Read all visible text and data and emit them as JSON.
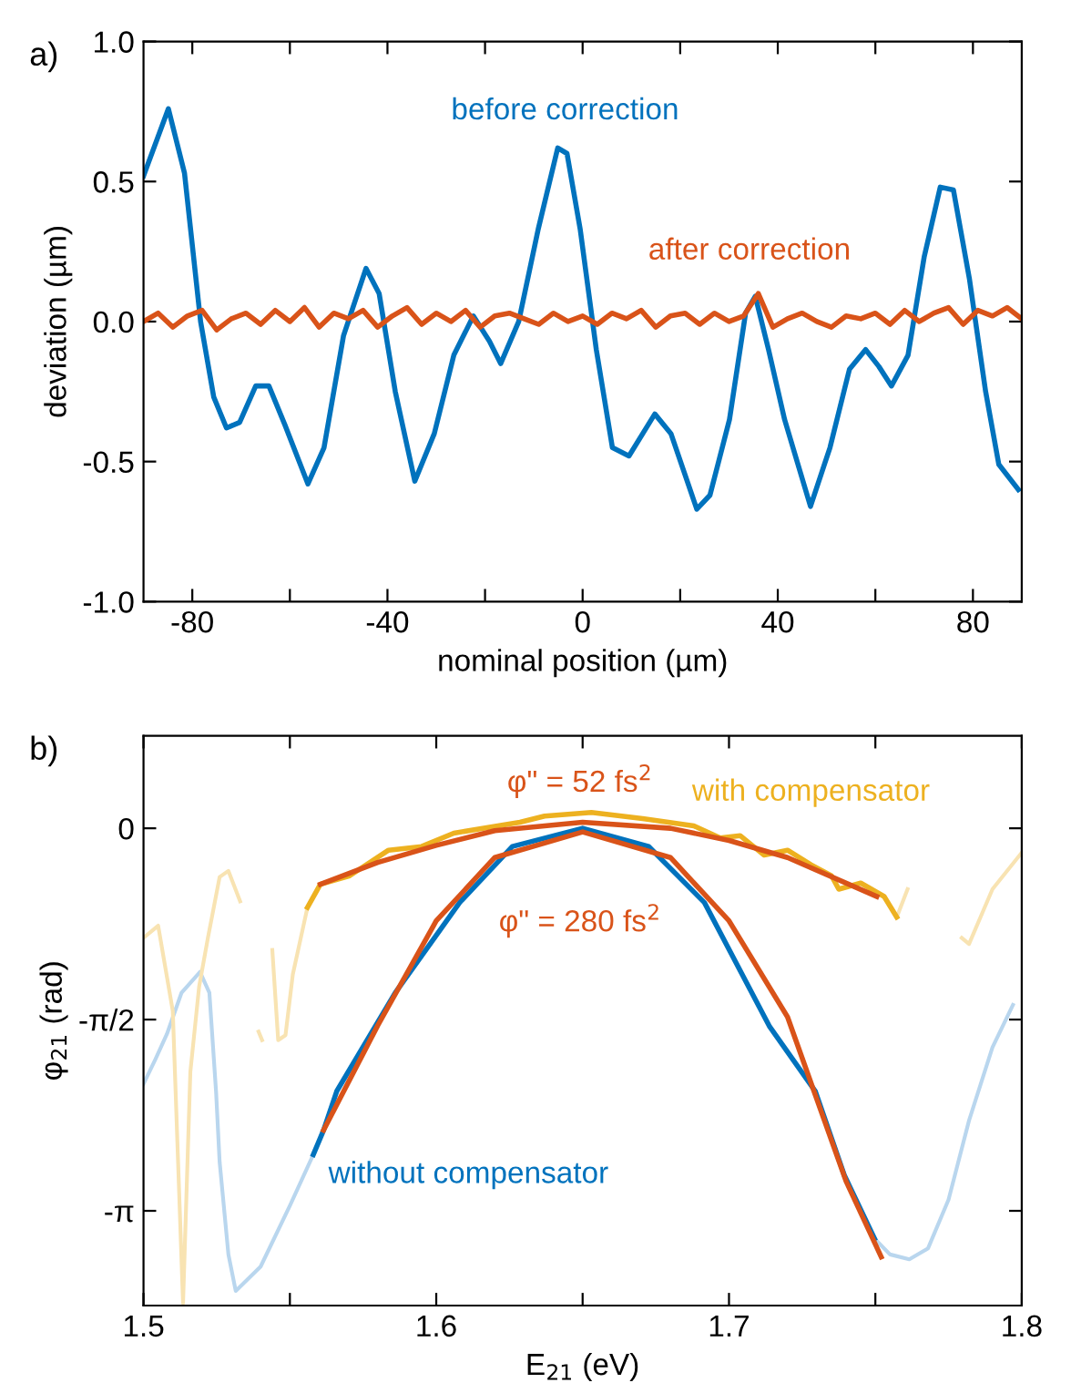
{
  "chart_data": [
    {
      "type": "line",
      "title": "a)",
      "xlabel": "nominal position (µm)",
      "ylabel": "deviation (µm)",
      "xlim": [
        -90,
        90
      ],
      "ylim": [
        -1.0,
        1.0
      ],
      "xticks": [
        -80,
        {
          "value": -60,
          "label": null
        },
        -40,
        {
          "value": -20,
          "label": null
        },
        0,
        {
          "value": 20,
          "label": null
        },
        40,
        {
          "value": 60,
          "label": null
        },
        80
      ],
      "yticks": [
        {
          "value": -1,
          "label": "-1.0"
        },
        -0.5,
        {
          "value": 0,
          "label": "0.0"
        },
        0.5,
        {
          "value": 1,
          "label": "1.0"
        }
      ],
      "grid": false,
      "legend": false,
      "series": [
        {
          "name": "before correction",
          "color": "#0072bd",
          "x": [
            -90,
            -84.9,
            -81.6,
            -78.3,
            -75.6,
            -73,
            -70.3,
            -67,
            -64.3,
            -61,
            -56.3,
            -53,
            -49,
            -44.4,
            -41.7,
            -38.4,
            -34.4,
            -30.4,
            -26.4,
            -22.4,
            -19.1,
            -16.8,
            -13.1,
            -9.1,
            -5.1,
            -3.2,
            -0.5,
            2.8,
            6.1,
            9.5,
            14.8,
            18.1,
            23.4,
            26.1,
            30.1,
            33.4,
            35.4,
            38.1,
            41.4,
            46.7,
            50.7,
            54.7,
            58,
            60.7,
            63.3,
            66.7,
            70,
            73.3,
            76,
            79.3,
            82.6,
            85.3,
            89.3
          ],
          "values": [
            0.52,
            0.76,
            0.53,
            0.0,
            -0.27,
            -0.38,
            -0.36,
            -0.23,
            -0.23,
            -0.37,
            -0.58,
            -0.45,
            -0.05,
            0.19,
            0.1,
            -0.25,
            -0.57,
            -0.4,
            -0.12,
            0.02,
            -0.07,
            -0.15,
            0.0,
            0.33,
            0.62,
            0.6,
            0.33,
            -0.1,
            -0.45,
            -0.48,
            -0.33,
            -0.4,
            -0.67,
            -0.62,
            -0.35,
            0.03,
            0.09,
            -0.1,
            -0.35,
            -0.66,
            -0.45,
            -0.17,
            -0.1,
            -0.16,
            -0.23,
            -0.12,
            0.23,
            0.48,
            0.47,
            0.15,
            -0.25,
            -0.51,
            -0.6
          ]
        },
        {
          "name": "after correction",
          "color": "#d95319",
          "x": [
            -90,
            -87,
            -84,
            -81,
            -78,
            -75,
            -72,
            -69,
            -66,
            -63,
            -60,
            -57,
            -54,
            -51,
            -48,
            -45,
            -42,
            -39,
            -36,
            -33,
            -30,
            -27,
            -24,
            -21,
            -18,
            -15,
            -12,
            -9,
            -6,
            -3,
            0,
            3,
            6,
            9,
            12,
            15,
            18,
            21,
            24,
            27,
            30,
            33,
            36,
            39,
            42,
            45,
            48,
            51,
            54,
            57,
            60,
            63,
            66,
            69,
            72,
            75,
            78,
            81,
            84,
            87,
            90
          ],
          "values": [
            0.0,
            0.03,
            -0.02,
            0.02,
            0.04,
            -0.03,
            0.01,
            0.03,
            -0.01,
            0.04,
            0.0,
            0.05,
            -0.02,
            0.03,
            0.01,
            0.04,
            -0.02,
            0.02,
            0.05,
            -0.01,
            0.03,
            0.0,
            0.04,
            -0.02,
            0.02,
            0.03,
            0.01,
            -0.01,
            0.03,
            0.0,
            0.02,
            -0.01,
            0.03,
            0.01,
            0.04,
            -0.02,
            0.02,
            0.03,
            -0.01,
            0.03,
            0.0,
            0.02,
            0.1,
            -0.02,
            0.01,
            0.03,
            0.0,
            -0.02,
            0.02,
            0.01,
            0.03,
            -0.01,
            0.04,
            0.0,
            0.03,
            0.05,
            -0.01,
            0.04,
            0.02,
            0.05,
            0.01
          ]
        }
      ]
    },
    {
      "type": "line",
      "title": "b)",
      "xlabel": "E$_{21}$ (eV)",
      "ylabel": "φ$_{21}$ (rad)",
      "xlim": [
        1.5,
        1.8
      ],
      "ylim": [
        -3.92,
        0.76
      ],
      "xticks": [
        1.5,
        {
          "value": 1.55,
          "label": null
        },
        1.6,
        {
          "value": 1.65,
          "label": null
        },
        1.7,
        {
          "value": 1.75,
          "label": null
        },
        1.8
      ],
      "yticks": [
        {
          "value": -3.142,
          "label": "-π"
        },
        {
          "value": -1.571,
          "label": "-π/2"
        },
        0
      ],
      "grid": false,
      "legend": false,
      "series": [
        {
          "color": "#b9d6ee",
          "x": [
            1.5,
            1.504,
            1.508,
            1.513,
            1.5193,
            1.5225,
            1.5248,
            1.526,
            1.529,
            1.5315,
            1.54,
            1.55,
            1.558
          ],
          "values": [
            -2.1,
            -1.9,
            -1.69,
            -1.35,
            -1.18,
            -1.35,
            -2.17,
            -2.74,
            -3.5,
            -3.8,
            -3.6,
            -3.1,
            -2.68
          ]
        },
        {
          "color": "#b9d6ee",
          "x": [
            1.7497,
            1.755,
            1.7616,
            1.768,
            1.775,
            1.782,
            1.79,
            1.797
          ],
          "values": [
            -3.37,
            -3.5,
            -3.54,
            -3.45,
            -3.05,
            -2.4,
            -1.8,
            -1.45
          ]
        },
        {
          "color": "#f8e3b2",
          "x": [
            1.5,
            1.505,
            1.51,
            1.5135,
            1.516,
            1.519,
            1.522,
            1.526,
            1.529,
            1.533,
            1.5355,
            1.5385,
            1.5393,
            1.5405,
            1.5415,
            1.544,
            1.546,
            1.5485,
            1.551,
            1.556
          ],
          "values": [
            -0.9,
            -0.8,
            -1.5,
            -3.9,
            -2.0,
            -1.3,
            -0.9,
            -0.4,
            -0.35,
            -0.6,
            null,
            null,
            -1.67,
            -1.74,
            null,
            -1.0,
            -1.74,
            -1.7,
            -1.2,
            -0.65
          ]
        },
        {
          "color": "#f8e3b2",
          "x": [
            1.7573,
            1.761,
            1.765,
            1.772,
            1.779,
            1.7795,
            1.782,
            1.79,
            1.8
          ],
          "values": [
            -0.73,
            -0.5,
            null,
            null,
            null,
            -0.9,
            -0.95,
            -0.5,
            -0.2
          ]
        },
        {
          "name": "with compensator",
          "color": "#edb120",
          "x": [
            1.556,
            1.5604,
            1.5704,
            1.5837,
            1.595,
            1.606,
            1.6286,
            1.637,
            1.653,
            1.6705,
            1.688,
            1.697,
            1.7038,
            1.712,
            1.72,
            1.728,
            1.735,
            1.7375,
            1.745,
            1.753,
            1.7573
          ],
          "values": [
            -0.65,
            -0.46,
            -0.39,
            -0.18,
            -0.15,
            -0.04,
            0.05,
            0.1,
            0.13,
            0.08,
            0.02,
            -0.08,
            -0.06,
            -0.22,
            -0.18,
            -0.3,
            -0.39,
            -0.5,
            -0.45,
            -0.56,
            -0.73
          ]
        },
        {
          "name": "without compensator",
          "color": "#0072bd",
          "x": [
            1.558,
            1.5615,
            1.566,
            1.586,
            1.608,
            1.626,
            1.65,
            1.6726,
            1.6916,
            1.7139,
            1.7295,
            1.7394,
            1.7497
          ],
          "values": [
            -2.68,
            -2.48,
            -2.16,
            -1.35,
            -0.61,
            -0.15,
            0.0,
            -0.15,
            -0.61,
            -1.63,
            -2.16,
            -2.85,
            -3.37
          ]
        },
        {
          "name": "φ\" = 52 fs$^{2}$",
          "color": "#d95319",
          "x": [
            1.5604,
            1.58,
            1.6,
            1.62,
            1.65,
            1.68,
            1.7,
            1.72,
            1.7505
          ],
          "values": [
            -0.46,
            -0.28,
            -0.14,
            -0.02,
            0.05,
            0.0,
            -0.1,
            -0.24,
            -0.56
          ]
        },
        {
          "name": "φ\" = 280 fs$^{2}$",
          "color": "#d95319",
          "x": [
            1.5615,
            1.58,
            1.6,
            1.62,
            1.65,
            1.68,
            1.7,
            1.72,
            1.74,
            1.752
          ],
          "values": [
            -2.48,
            -1.62,
            -0.76,
            -0.24,
            -0.03,
            -0.24,
            -0.76,
            -1.55,
            -2.9,
            -3.52
          ]
        }
      ]
    }
  ]
}
